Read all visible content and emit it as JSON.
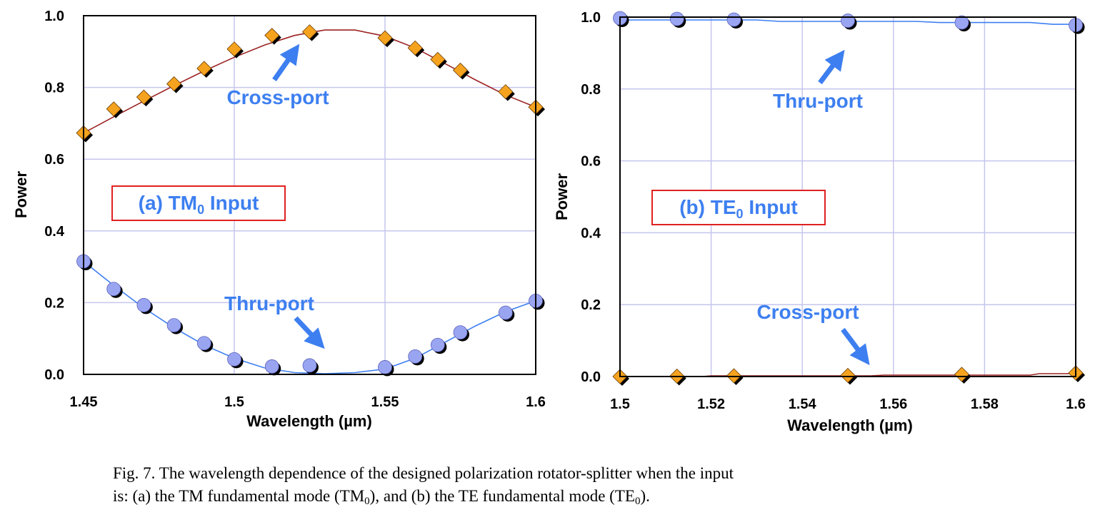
{
  "colors": {
    "thru_marker": "#9aa5f2",
    "thru_line": "#3d7ff0",
    "cross_marker": "#f5a31f",
    "cross_line": "#9c2222",
    "annotation": "#3d7ff0",
    "inset_border": "#e02020",
    "grid": "#c5c5ee"
  },
  "marker_shapes": {
    "thru": "circle",
    "cross": "diamond"
  },
  "chart_data": [
    {
      "type": "line",
      "xlabel": "Wavelength (µm)",
      "ylabel": "Power",
      "xlim": [
        1.45,
        1.6
      ],
      "ylim": [
        0.0,
        1.0
      ],
      "xticks": [
        "1.45",
        "1.5",
        "1.55",
        "1.6"
      ],
      "xtick_values": [
        1.45,
        1.5,
        1.55,
        1.6
      ],
      "yticks": [
        "0.0",
        "0.2",
        "0.4",
        "0.6",
        "0.8",
        "1.0"
      ],
      "ytick_values": [
        0.0,
        0.2,
        0.4,
        0.6,
        0.8,
        1.0
      ],
      "grid": true,
      "inset_label": {
        "prefix": "(a) TM",
        "subscript": "0",
        "suffix": " Input"
      },
      "annotations": [
        {
          "text": "Cross-port",
          "points_to": [
            1.523,
            0.945
          ]
        },
        {
          "text": "Thru-port",
          "points_to": [
            1.531,
            0.045
          ]
        }
      ],
      "series": [
        {
          "name": "Cross-port",
          "marker": "diamond",
          "points": [
            [
              1.45,
              0.673
            ],
            [
              1.46,
              0.74
            ],
            [
              1.47,
              0.773
            ],
            [
              1.48,
              0.81
            ],
            [
              1.49,
              0.853
            ],
            [
              1.5,
              0.907
            ],
            [
              1.5125,
              0.945
            ],
            [
              1.525,
              0.955
            ],
            [
              1.55,
              0.938
            ],
            [
              1.56,
              0.91
            ],
            [
              1.5675,
              0.878
            ],
            [
              1.575,
              0.848
            ],
            [
              1.59,
              0.788
            ],
            [
              1.6,
              0.745
            ]
          ],
          "curve": [
            [
              1.45,
              0.673
            ],
            [
              1.46,
              0.718
            ],
            [
              1.47,
              0.762
            ],
            [
              1.48,
              0.805
            ],
            [
              1.49,
              0.846
            ],
            [
              1.5,
              0.884
            ],
            [
              1.51,
              0.918
            ],
            [
              1.52,
              0.945
            ],
            [
              1.53,
              0.96
            ],
            [
              1.54,
              0.96
            ],
            [
              1.55,
              0.943
            ],
            [
              1.56,
              0.91
            ],
            [
              1.57,
              0.866
            ],
            [
              1.58,
              0.821
            ],
            [
              1.59,
              0.779
            ],
            [
              1.6,
              0.745
            ]
          ]
        },
        {
          "name": "Thru-port",
          "marker": "circle",
          "points": [
            [
              1.45,
              0.315
            ],
            [
              1.46,
              0.238
            ],
            [
              1.47,
              0.193
            ],
            [
              1.48,
              0.137
            ],
            [
              1.49,
              0.087
            ],
            [
              1.5,
              0.042
            ],
            [
              1.5125,
              0.022
            ],
            [
              1.525,
              0.025
            ],
            [
              1.55,
              0.02
            ],
            [
              1.56,
              0.05
            ],
            [
              1.5675,
              0.082
            ],
            [
              1.575,
              0.117
            ],
            [
              1.59,
              0.172
            ],
            [
              1.6,
              0.205
            ]
          ],
          "curve": [
            [
              1.45,
              0.315
            ],
            [
              1.46,
              0.248
            ],
            [
              1.47,
              0.185
            ],
            [
              1.48,
              0.13
            ],
            [
              1.49,
              0.082
            ],
            [
              1.5,
              0.045
            ],
            [
              1.51,
              0.018
            ],
            [
              1.52,
              0.005
            ],
            [
              1.53,
              0.002
            ],
            [
              1.54,
              0.005
            ],
            [
              1.55,
              0.015
            ],
            [
              1.56,
              0.045
            ],
            [
              1.57,
              0.09
            ],
            [
              1.58,
              0.135
            ],
            [
              1.59,
              0.175
            ],
            [
              1.6,
              0.205
            ]
          ]
        }
      ]
    },
    {
      "type": "line",
      "xlabel": "Wavelength (µm)",
      "ylabel": "Power",
      "xlim": [
        1.5,
        1.6
      ],
      "ylim": [
        0.0,
        1.0
      ],
      "xticks": [
        "1.5",
        "1.52",
        "1.54",
        "1.56",
        "1.58",
        "1.6"
      ],
      "xtick_values": [
        1.5,
        1.52,
        1.54,
        1.56,
        1.58,
        1.6
      ],
      "yticks": [
        "0.0",
        "0.2",
        "0.4",
        "0.6",
        "0.8",
        "1.0"
      ],
      "ytick_values": [
        0.0,
        0.2,
        0.4,
        0.6,
        0.8,
        1.0
      ],
      "grid": true,
      "inset_label": {
        "prefix": "(b) TE",
        "subscript": "0",
        "suffix": " Input"
      },
      "annotations": [
        {
          "text": "Thru-port",
          "points_to": [
            1.5495,
            0.935
          ]
        },
        {
          "text": "Cross-port",
          "points_to": [
            1.556,
            0.025
          ]
        }
      ],
      "series": [
        {
          "name": "Thru-port",
          "marker": "circle",
          "points": [
            [
              1.5,
              0.997
            ],
            [
              1.5125,
              0.995
            ],
            [
              1.525,
              0.993
            ],
            [
              1.55,
              0.99
            ],
            [
              1.575,
              0.985
            ],
            [
              1.6,
              0.978
            ]
          ],
          "curve": [
            [
              1.5,
              0.992
            ],
            [
              1.53,
              0.992
            ],
            [
              1.535,
              0.988
            ],
            [
              1.565,
              0.988
            ],
            [
              1.57,
              0.985
            ],
            [
              1.59,
              0.985
            ],
            [
              1.595,
              0.98
            ],
            [
              1.6,
              0.98
            ]
          ]
        },
        {
          "name": "Cross-port",
          "marker": "diamond",
          "points": [
            [
              1.5,
              0.0
            ],
            [
              1.5125,
              0.001
            ],
            [
              1.525,
              0.002
            ],
            [
              1.55,
              0.003
            ],
            [
              1.575,
              0.006
            ],
            [
              1.6,
              0.01
            ]
          ],
          "curve": [
            [
              1.5,
              0.0
            ],
            [
              1.518,
              0.0
            ],
            [
              1.52,
              0.002
            ],
            [
              1.555,
              0.002
            ],
            [
              1.558,
              0.004
            ],
            [
              1.59,
              0.004
            ],
            [
              1.592,
              0.008
            ],
            [
              1.6,
              0.008
            ]
          ]
        }
      ]
    }
  ],
  "caption": {
    "line1": "Fig. 7. The wavelength dependence of the designed polarization rotator-splitter when the input",
    "line2_a": "is: (a) the TM fundamental mode (TM",
    "line2_sub1": "0",
    "line2_b": "), and (b) the TE fundamental mode (TE",
    "line2_sub2": "0",
    "line2_c": ")."
  }
}
